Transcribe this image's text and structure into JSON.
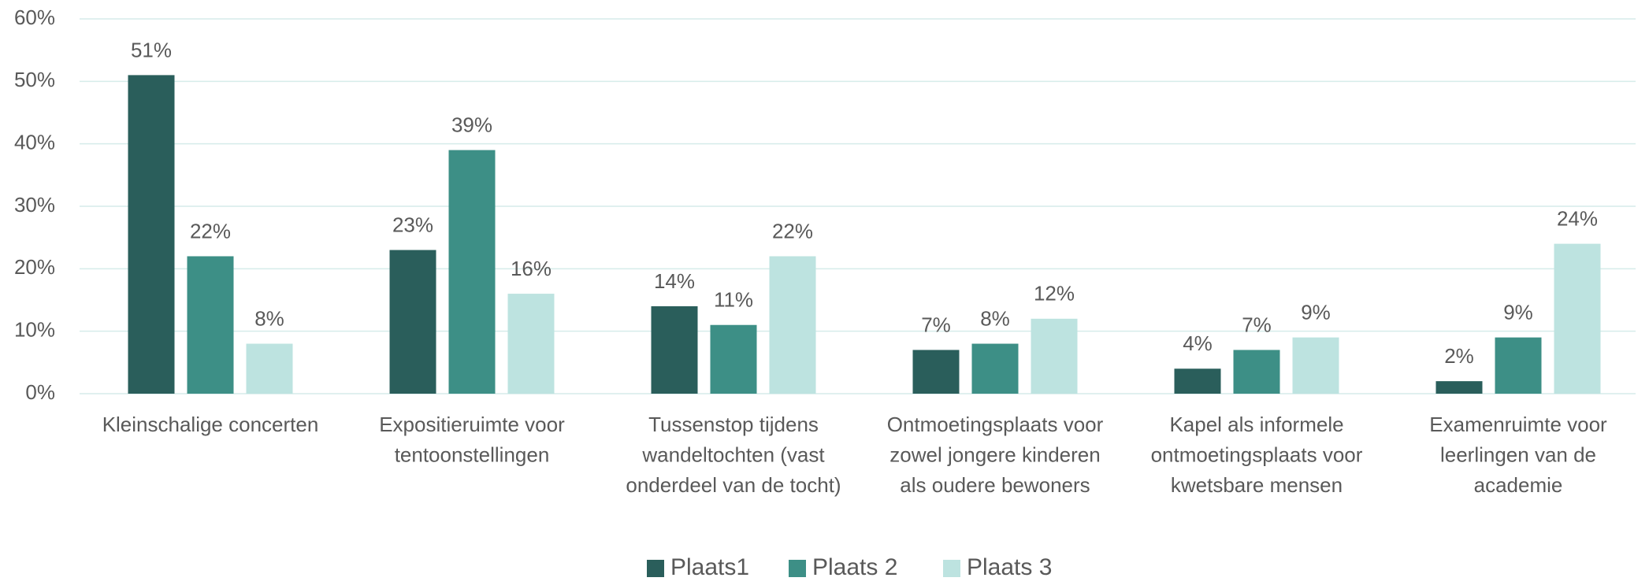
{
  "chart_data": {
    "type": "bar",
    "categories": [
      "Kleinschalige concerten",
      "Expositieruimte voor\ntentoonstellingen",
      "Tussenstop tijdens\nwandeltochten (vast\nonderdeel van de tocht)",
      "Ontmoetingsplaats voor\nzowel jongere kinderen\nals oudere bewoners",
      "Kapel als informele\nontmoetingsplaats voor\nkwetsbare mensen",
      "Examenruimte voor\nleerlingen van de\nacademie"
    ],
    "series": [
      {
        "name": "Plaats1",
        "color": "#2a5e5b",
        "values": [
          51,
          23,
          14,
          7,
          4,
          2
        ],
        "value_labels": [
          "51%",
          "23%",
          "14%",
          "7%",
          "4%",
          "2%"
        ]
      },
      {
        "name": "Plaats 2",
        "color": "#3d8f86",
        "values": [
          22,
          39,
          11,
          8,
          7,
          9
        ],
        "value_labels": [
          "22%",
          "39%",
          "11%",
          "8%",
          "7%",
          "9%"
        ]
      },
      {
        "name": "Plaats 3",
        "color": "#bde3e0",
        "values": [
          8,
          16,
          22,
          12,
          9,
          24
        ],
        "value_labels": [
          "8%",
          "16%",
          "22%",
          "12%",
          "9%",
          "24%"
        ]
      }
    ],
    "ylim": [
      0,
      60
    ],
    "yticks": [
      {
        "value": 0,
        "label": "0%"
      },
      {
        "value": 10,
        "label": "10%"
      },
      {
        "value": 20,
        "label": "20%"
      },
      {
        "value": 30,
        "label": "30%"
      },
      {
        "value": 40,
        "label": "40%"
      },
      {
        "value": 50,
        "label": "50%"
      },
      {
        "value": 60,
        "label": "60%"
      }
    ],
    "grid": true,
    "legend": "bottom"
  }
}
